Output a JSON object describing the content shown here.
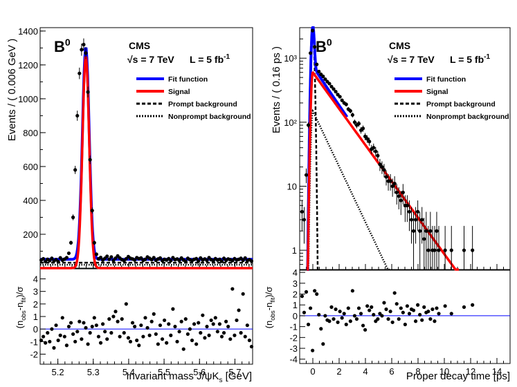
{
  "chart_data": [
    {
      "type": "scatter",
      "title": "B0",
      "experiment": "CMS",
      "energy_label": "√s = 7 TeV",
      "lumi_label": "L = 5 fb-1",
      "xlabel": "Invariant mass J/ψKs [GeV]",
      "ylabel": "Events / ( 0.006 GeV )",
      "xlim": [
        5.15,
        5.75
      ],
      "ylim": [
        0,
        1420
      ],
      "x_ticks": [
        5.2,
        5.3,
        5.4,
        5.5,
        5.6,
        5.7
      ],
      "y_ticks": [
        200,
        400,
        600,
        800,
        1000,
        1200,
        1400
      ],
      "legend": [
        "Fit function",
        "Signal",
        "Prompt background",
        "Nonprompt background"
      ],
      "legend_position": "top-right",
      "colors": {
        "fit": "#0000ff",
        "signal": "#ff0000",
        "background": "#000000"
      },
      "signal_peak": {
        "mean": 5.279,
        "sigma": 0.0095,
        "amplitude": 1250
      },
      "background_level": 32,
      "data_points": {
        "x": [
          5.153,
          5.159,
          5.165,
          5.171,
          5.177,
          5.183,
          5.189,
          5.195,
          5.201,
          5.207,
          5.213,
          5.219,
          5.225,
          5.231,
          5.237,
          5.243,
          5.249,
          5.255,
          5.261,
          5.267,
          5.273,
          5.279,
          5.285,
          5.291,
          5.297,
          5.303,
          5.309,
          5.315,
          5.321,
          5.327,
          5.333,
          5.339,
          5.345,
          5.351,
          5.357,
          5.363,
          5.369,
          5.375,
          5.381,
          5.387,
          5.393,
          5.399,
          5.405,
          5.411,
          5.417,
          5.423,
          5.429,
          5.435,
          5.441,
          5.447,
          5.453,
          5.459,
          5.465,
          5.471,
          5.477,
          5.483,
          5.489,
          5.495,
          5.501,
          5.507,
          5.513,
          5.519,
          5.525,
          5.531,
          5.537,
          5.543,
          5.549,
          5.555,
          5.561,
          5.567,
          5.573,
          5.579,
          5.585,
          5.591,
          5.597,
          5.603,
          5.609,
          5.615,
          5.621,
          5.627,
          5.633,
          5.639,
          5.645,
          5.651,
          5.657,
          5.663,
          5.669,
          5.675,
          5.681,
          5.687,
          5.693,
          5.699,
          5.705,
          5.711,
          5.717,
          5.723,
          5.729,
          5.735,
          5.741,
          5.747
        ],
        "y": [
          48,
          55,
          38,
          52,
          44,
          58,
          42,
          50,
          39,
          61,
          47,
          53,
          62,
          88,
          150,
          300,
          580,
          900,
          1150,
          1290,
          1320,
          1270,
          1040,
          640,
          340,
          150,
          82,
          55,
          63,
          48,
          58,
          70,
          52,
          66,
          45,
          59,
          72,
          60,
          50,
          44,
          55,
          68,
          58,
          54,
          48,
          62,
          56,
          60,
          46,
          52,
          66,
          58,
          50,
          62,
          46,
          54,
          60,
          44,
          52,
          48,
          56,
          44,
          62,
          50,
          54,
          46,
          60,
          48,
          40,
          58,
          50,
          44,
          52,
          56,
          42,
          60,
          48,
          54,
          46,
          62,
          50,
          44,
          56,
          48,
          52,
          40,
          58,
          46,
          54,
          50,
          44,
          56,
          48,
          52,
          58,
          46,
          60,
          44,
          50,
          42
        ]
      },
      "residuals": {
        "ylabel": "(nobs-nfit)/σ",
        "ylim": [
          -2.8,
          4.8
        ],
        "y_ticks": [
          -2,
          -1,
          0,
          1,
          2,
          3,
          4
        ],
        "x": [
          5.153,
          5.159,
          5.165,
          5.171,
          5.177,
          5.183,
          5.189,
          5.195,
          5.201,
          5.207,
          5.213,
          5.219,
          5.225,
          5.231,
          5.237,
          5.243,
          5.249,
          5.255,
          5.261,
          5.267,
          5.273,
          5.279,
          5.285,
          5.291,
          5.297,
          5.303,
          5.309,
          5.315,
          5.321,
          5.327,
          5.333,
          5.339,
          5.345,
          5.351,
          5.357,
          5.363,
          5.369,
          5.375,
          5.381,
          5.387,
          5.393,
          5.399,
          5.405,
          5.411,
          5.417,
          5.423,
          5.429,
          5.435,
          5.441,
          5.447,
          5.453,
          5.459,
          5.465,
          5.471,
          5.477,
          5.483,
          5.489,
          5.495,
          5.501,
          5.507,
          5.513,
          5.519,
          5.525,
          5.531,
          5.537,
          5.543,
          5.549,
          5.555,
          5.561,
          5.567,
          5.573,
          5.579,
          5.585,
          5.591,
          5.597,
          5.603,
          5.609,
          5.615,
          5.621,
          5.627,
          5.633,
          5.639,
          5.645,
          5.651,
          5.657,
          5.663,
          5.669,
          5.675,
          5.681,
          5.687,
          5.693,
          5.699,
          5.705,
          5.711,
          5.717,
          5.723,
          5.729,
          5.735,
          5.741,
          5.747
        ],
        "y": [
          -0.9,
          -0.6,
          -1.1,
          -0.3,
          -1.0,
          0.0,
          -1.5,
          0.3,
          -0.9,
          -0.5,
          0.9,
          -0.6,
          -1.3,
          0.2,
          0.5,
          -0.4,
          -1.0,
          -0.2,
          0.6,
          -0.8,
          0.5,
          0.1,
          -1.2,
          -0.3,
          0.2,
          0.9,
          0.3,
          -0.6,
          -1.1,
          0.4,
          -0.2,
          -0.8,
          0.8,
          -0.3,
          1.0,
          1.4,
          0.6,
          -0.6,
          0.8,
          -0.3,
          2.0,
          -0.7,
          -1.0,
          0.5,
          0.2,
          -0.9,
          -1.3,
          0.3,
          -0.6,
          0.9,
          0.1,
          -0.5,
          0.6,
          1.2,
          -0.4,
          -1.2,
          0.3,
          -0.8,
          0.7,
          -1.1,
          0.4,
          -0.5,
          1.6,
          0.2,
          -1.0,
          -0.2,
          0.6,
          -1.6,
          0.8,
          -0.4,
          0.0,
          -0.9,
          0.4,
          -1.2,
          0.5,
          -0.3,
          1.1,
          -0.7,
          0.2,
          -0.5,
          0.7,
          0.4,
          0.9,
          -0.2,
          0.4,
          -0.6,
          -0.3,
          0.6,
          0.2,
          -0.8,
          3.2,
          -0.5,
          0.7,
          1.5,
          -0.3,
          2.8,
          -0.6,
          0.3,
          -0.9,
          -1.4
        ]
      }
    },
    {
      "type": "scatter",
      "title": "B0",
      "experiment": "CMS",
      "energy_label": "√s = 7 TeV",
      "lumi_label": "L = 5 fb-1",
      "xlabel": "Proper decay time [ps]",
      "ylabel": "Events / ( 0.16 ps )",
      "xlim": [
        -1.0,
        15.0
      ],
      "ylim_log": [
        0.5,
        3000
      ],
      "y_scale": "log",
      "x_ticks": [
        0,
        2,
        4,
        6,
        8,
        10,
        12,
        14
      ],
      "y_ticks": [
        1,
        10,
        100,
        1000
      ],
      "y_tick_labels": [
        "1",
        "10",
        "10²",
        "10³"
      ],
      "legend": [
        "Fit function",
        "Signal",
        "Prompt background",
        "Nonprompt background"
      ],
      "legend_position": "top-right",
      "colors": {
        "fit": "#0000ff",
        "signal": "#ff0000",
        "background": "#000000"
      },
      "signal": {
        "amplitude": 600,
        "tau": 1.53
      },
      "prompt": {
        "amplitude": 2400,
        "sigma": 0.09
      },
      "nonprompt": {
        "amplitude": 150,
        "tau": 1.0
      },
      "data_points": {
        "x": [
          -0.82,
          -0.66,
          -0.5,
          -0.34,
          -0.18,
          -0.02,
          0.14,
          0.3,
          0.46,
          0.62,
          0.78,
          0.94,
          1.1,
          1.26,
          1.42,
          1.58,
          1.74,
          1.9,
          2.06,
          2.22,
          2.38,
          2.54,
          2.7,
          2.86,
          3.02,
          3.18,
          3.34,
          3.5,
          3.66,
          3.82,
          3.98,
          4.14,
          4.3,
          4.46,
          4.62,
          4.78,
          4.94,
          5.1,
          5.26,
          5.42,
          5.58,
          5.74,
          5.9,
          6.06,
          6.22,
          6.38,
          6.54,
          6.7,
          6.86,
          7.02,
          7.18,
          7.34,
          7.5,
          7.66,
          7.82,
          7.98,
          8.14,
          8.3,
          8.46,
          8.62,
          8.78,
          8.94,
          9.1,
          9.26,
          9.42,
          9.58,
          10.06,
          10.54,
          11.5,
          12.14
        ],
        "y": [
          4,
          3,
          15,
          90,
          1200,
          2700,
          1500,
          800,
          620,
          560,
          520,
          470,
          430,
          400,
          360,
          330,
          300,
          270,
          250,
          220,
          200,
          190,
          160,
          150,
          130,
          100,
          90,
          95,
          75,
          80,
          60,
          55,
          50,
          38,
          40,
          35,
          30,
          22,
          20,
          18,
          14,
          12,
          12,
          10,
          11,
          8,
          7,
          6,
          8,
          5,
          5,
          4,
          3,
          2,
          3,
          4,
          2,
          3,
          1.5,
          2,
          1,
          2,
          1,
          1,
          2,
          1,
          1,
          1,
          1,
          1
        ]
      },
      "residuals": {
        "ylabel": "(nobs-nfit)/σ",
        "ylim": [
          -4.4,
          4.2
        ],
        "y_ticks": [
          -4,
          -3,
          -2,
          -1,
          0,
          1,
          2,
          3,
          4
        ],
        "x": [
          -0.82,
          -0.66,
          -0.5,
          -0.34,
          -0.18,
          -0.02,
          0.14,
          0.3,
          0.46,
          0.62,
          0.78,
          0.94,
          1.1,
          1.26,
          1.42,
          1.58,
          1.74,
          1.9,
          2.06,
          2.22,
          2.38,
          2.54,
          2.7,
          2.86,
          3.02,
          3.18,
          3.34,
          3.5,
          3.66,
          3.82,
          3.98,
          4.14,
          4.3,
          4.46,
          4.62,
          4.78,
          4.94,
          5.1,
          5.26,
          5.42,
          5.58,
          5.74,
          5.9,
          6.06,
          6.22,
          6.38,
          6.54,
          6.7,
          6.86,
          7.02,
          7.18,
          7.34,
          7.5,
          7.66,
          7.82,
          7.98,
          8.14,
          8.3,
          8.46,
          8.62,
          8.78,
          8.94,
          9.1,
          9.26,
          9.42,
          9.58,
          10.06,
          10.54,
          11.5,
          12.14
        ],
        "y": [
          1.8,
          0.3,
          2.2,
          -0.8,
          0.7,
          -3.2,
          2.3,
          2.0,
          0.1,
          -1.2,
          -2.6,
          0.0,
          -0.4,
          -0.5,
          0.8,
          -0.3,
          0.6,
          -0.6,
          0.4,
          -0.2,
          0.2,
          -0.8,
          0.7,
          -0.5,
          2.3,
          0.0,
          -0.3,
          0.7,
          0.2,
          -0.9,
          -1.3,
          0.9,
          0.5,
          0.8,
          0.1,
          -0.5,
          -0.3,
          0.2,
          0.0,
          1.2,
          0.6,
          -0.3,
          0.4,
          -0.6,
          2.1,
          1.1,
          -0.3,
          0.7,
          0.3,
          -0.8,
          0.9,
          0.2,
          0.6,
          0.5,
          -0.5,
          1.0,
          0.1,
          -0.4,
          0.8,
          0.3,
          0.4,
          -0.3,
          0.6,
          -0.5,
          0.7,
          0.2,
          0.9,
          0.2,
          0.8,
          1.0
        ]
      }
    }
  ]
}
